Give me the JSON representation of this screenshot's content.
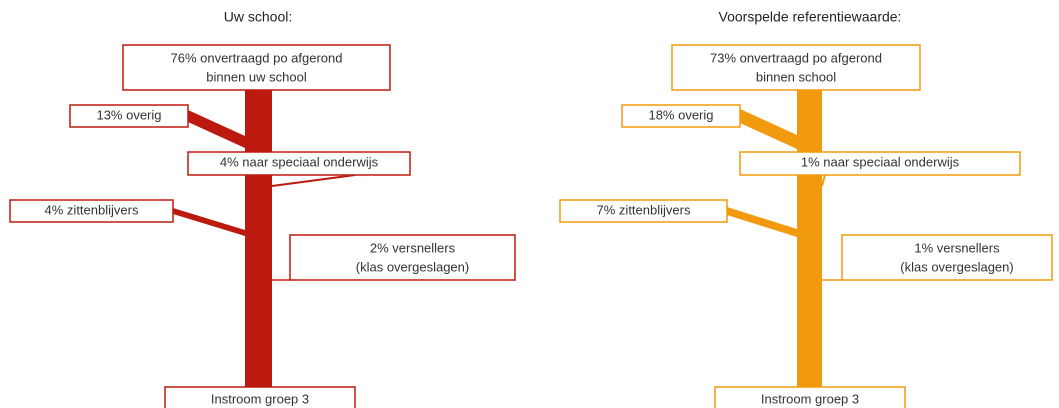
{
  "panels": [
    {
      "title": "Uw school:",
      "color": "#bd1a0f",
      "top": [
        "76% onvertraagd po afgerond",
        "binnen uw school"
      ],
      "overig": "13% overig",
      "speciaal": "4% naar speciaal onderwijs",
      "zitten": "4% zittenblijvers",
      "versnellers": [
        "2% versnellers",
        "(klas overgeslagen)"
      ],
      "bottom": "Instroom groep 3"
    },
    {
      "title": "Voorspelde referentiewaarde:",
      "color": "#f29a0e",
      "top": [
        "73% onvertraagd po afgerond",
        "binnen school"
      ],
      "overig": "18% overig",
      "speciaal": "1% naar speciaal onderwijs",
      "zitten": "7% zittenblijvers",
      "versnellers": [
        "1% versnellers",
        "(klas overgeslagen)"
      ],
      "bottom": "Instroom groep 3"
    }
  ]
}
